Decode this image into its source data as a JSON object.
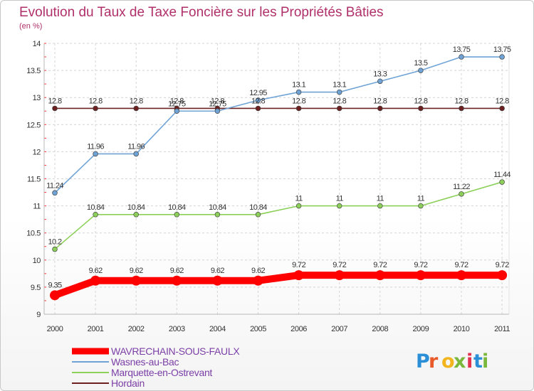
{
  "chart_data": {
    "type": "line",
    "title": "Evolution du Taux de Taxe Foncière sur les Propriétés Bâties",
    "subtitle": "(en %)",
    "xlabel": "",
    "ylabel": "",
    "x": [
      "2000",
      "2001",
      "2002",
      "2003",
      "2004",
      "2005",
      "2006",
      "2007",
      "2008",
      "2009",
      "2010",
      "2011"
    ],
    "ylim": [
      9,
      14
    ],
    "yticks": [
      "9",
      "9.5",
      "10",
      "10.5",
      "11",
      "11.5",
      "12",
      "12.5",
      "13",
      "13.5",
      "14"
    ],
    "grid": true,
    "legend_position": "bottom-left",
    "series": [
      {
        "name": "Hordain",
        "color": "#6e2020",
        "values": [
          12.8,
          12.8,
          12.8,
          12.8,
          12.8,
          12.8,
          12.8,
          12.8,
          12.8,
          12.8,
          12.8,
          12.8
        ],
        "labels": [
          "12.8",
          "12.8",
          "12.8",
          "12.8",
          "12.8",
          "12.8",
          "12.8",
          "12.8",
          "12.8",
          "12.8",
          "12.8",
          "12.8"
        ]
      },
      {
        "name": "Marquette-en-Ostrevant",
        "color": "#8cd05a",
        "values": [
          10.2,
          10.84,
          10.84,
          10.84,
          10.84,
          10.84,
          11,
          11,
          11,
          11,
          11.22,
          11.44
        ],
        "labels": [
          "10.2",
          "10.84",
          "10.84",
          "10.84",
          "10.84",
          "10.84",
          "11",
          "11",
          "11",
          "11",
          "11.22",
          "11.44"
        ]
      },
      {
        "name": "Wasnes-au-Bac",
        "color": "#6fa3d6",
        "values": [
          11.24,
          11.96,
          11.96,
          12.75,
          12.75,
          12.95,
          13.1,
          13.1,
          13.3,
          13.5,
          13.75,
          13.75
        ],
        "labels": [
          "11.24",
          "11.96",
          "11.96",
          "12.75",
          "12.75",
          "12.95",
          "13.1",
          "13.1",
          "13.3",
          "13.5",
          "13.75",
          "13.75"
        ]
      },
      {
        "name": "WAVRECHAIN-SOUS-FAULX",
        "color": "#ff0000",
        "values": [
          9.35,
          9.62,
          9.62,
          9.62,
          9.62,
          9.62,
          9.72,
          9.72,
          9.72,
          9.72,
          9.72,
          9.72
        ],
        "labels": [
          "9.35",
          "9.62",
          "9.62",
          "9.62",
          "9.62",
          "9.62",
          "9.72",
          "9.72",
          "9.72",
          "9.72",
          "9.72",
          "9.72"
        ]
      }
    ],
    "legend": [
      "WAVRECHAIN-SOUS-FAULX",
      "Wasnes-au-Bac",
      "Marquette-en-Ostrevant",
      "Hordain"
    ]
  },
  "brand": {
    "letters": [
      "P",
      "r",
      "o",
      "x",
      "i",
      "t",
      "i"
    ],
    "colors": [
      "#2a8fd6",
      "#e85a2a",
      "#f2b51e",
      "#7ab83c",
      "#e2324f",
      "#2a8fd6",
      "#7ab83c"
    ]
  }
}
